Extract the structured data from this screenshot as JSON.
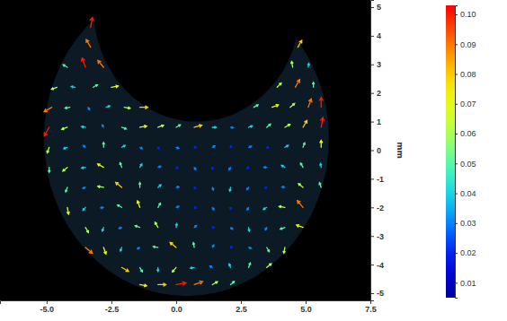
{
  "chart_data": {
    "type": "quiver",
    "y_label": "mm",
    "xlim": [
      -6.8,
      7.5
    ],
    "xticks": [
      {
        "value": -5,
        "label": "-5.0"
      },
      -2.5,
      {
        "value": 0,
        "label": "0.0"
      },
      2.5,
      {
        "value": 5,
        "label": "5.0"
      },
      7.5
    ],
    "ylim": [
      -5.25,
      5.25
    ],
    "yticks": [
      -5,
      -4,
      -3,
      -2,
      -1,
      0,
      1,
      2,
      3,
      4,
      5
    ],
    "x": [
      -3.3,
      -3.3,
      4.7,
      -4.2,
      -3.5,
      -2.8,
      4.5,
      5.1,
      -4.6,
      -3.9,
      -3.2,
      -2.5,
      3.9,
      4.6,
      5.3,
      -4.8,
      -4.1,
      -3.4,
      -2.7,
      -2.0,
      -1.4,
      3.0,
      3.7,
      4.4,
      5.1,
      5.6,
      -4.9,
      -4.2,
      -3.5,
      -2.8,
      -2.1,
      -1.4,
      -0.7,
      0,
      0.7,
      1.4,
      2.1,
      2.8,
      3.5,
      4.2,
      4.9,
      5.6,
      -4.9,
      -4.2,
      -3.5,
      -2.8,
      -2.1,
      -1.4,
      -0.7,
      0,
      0.7,
      1.4,
      2.1,
      2.8,
      3.5,
      4.2,
      4.9,
      5.6,
      -4.9,
      -4.2,
      -3.5,
      -2.8,
      -2.1,
      -1.4,
      -0.7,
      0,
      0.7,
      1.4,
      2.1,
      2.8,
      3.5,
      4.2,
      4.9,
      5.6,
      -4.2,
      -3.5,
      -2.8,
      -2.1,
      -1.4,
      -0.7,
      0,
      0.7,
      1.4,
      2.1,
      2.8,
      3.5,
      4.2,
      4.9,
      5.6,
      -4.2,
      -3.5,
      -2.8,
      -2.1,
      -1.4,
      -0.7,
      0,
      0.7,
      1.4,
      2.1,
      2.8,
      3.5,
      4.2,
      4.9,
      -3.5,
      -2.8,
      -2.1,
      -1.4,
      -0.7,
      0,
      0.7,
      1.4,
      2.1,
      2.8,
      3.5,
      4.2,
      4.9,
      -3.5,
      -2.8,
      -2.1,
      -1.4,
      -0.7,
      0,
      0.7,
      1.4,
      2.1,
      2.8,
      3.5,
      4.2,
      -2.1,
      -1.4,
      -0.7,
      0,
      0.7,
      1.4,
      2.1,
      2.8,
      3.5,
      -1.4,
      -0.7,
      0,
      0.7,
      1.4,
      2.1
    ],
    "y": [
      4.3,
      3.6,
      3.6,
      2.9,
      2.9,
      2.9,
      2.9,
      2.9,
      2.2,
      2.2,
      2.2,
      2.2,
      2.2,
      2.2,
      2.2,
      1.5,
      1.5,
      1.5,
      1.5,
      1.5,
      1.5,
      1.5,
      1.5,
      1.5,
      1.5,
      1.5,
      0.8,
      0.8,
      0.8,
      0.8,
      0.8,
      0.8,
      0.8,
      0.8,
      0.8,
      0.8,
      0.8,
      0.8,
      0.8,
      0.8,
      0.8,
      0.8,
      0.1,
      0.1,
      0.1,
      0.1,
      0.1,
      0.1,
      0.1,
      0.1,
      0.1,
      0.1,
      0.1,
      0.1,
      0.1,
      0.1,
      0.1,
      0.1,
      -0.6,
      -0.6,
      -0.6,
      -0.6,
      -0.6,
      -0.6,
      -0.6,
      -0.6,
      -0.6,
      -0.6,
      -0.6,
      -0.6,
      -0.6,
      -0.6,
      -0.6,
      -0.6,
      -1.3,
      -1.3,
      -1.3,
      -1.3,
      -1.3,
      -1.3,
      -1.3,
      -1.3,
      -1.3,
      -1.3,
      -1.3,
      -1.3,
      -1.3,
      -1.3,
      -1.3,
      -2.0,
      -2.0,
      -2.0,
      -2.0,
      -2.0,
      -2.0,
      -2.0,
      -2.0,
      -2.0,
      -2.0,
      -2.0,
      -2.0,
      -2.0,
      -2.0,
      -2.7,
      -2.7,
      -2.7,
      -2.7,
      -2.7,
      -2.7,
      -2.7,
      -2.7,
      -2.7,
      -2.7,
      -2.7,
      -2.7,
      -2.7,
      -3.4,
      -3.4,
      -3.4,
      -3.4,
      -3.4,
      -3.4,
      -3.4,
      -3.4,
      -3.4,
      -3.4,
      -3.4,
      -3.4,
      -4.1,
      -4.1,
      -4.1,
      -4.1,
      -4.1,
      -4.1,
      -4.1,
      -4.1,
      -4.1,
      -4.7,
      -4.7,
      -4.7,
      -4.7,
      -4.7,
      -4.7
    ],
    "speed": [
      0.1,
      0.09,
      0.08,
      0.05,
      0.1,
      0.09,
      0.06,
      0.04,
      0.06,
      0.04,
      0.05,
      0.07,
      0.06,
      0.09,
      0.05,
      0.09,
      0.05,
      0.03,
      0.04,
      0.06,
      0.08,
      0.05,
      0.07,
      0.06,
      0.09,
      0.1,
      0.1,
      0.06,
      0.04,
      0.03,
      0.05,
      0.07,
      0.06,
      0.05,
      0.08,
      0.04,
      0.03,
      0.04,
      0.05,
      0.06,
      0.08,
      0.1,
      0.06,
      0.04,
      0.03,
      0.05,
      0.04,
      0.03,
      0.02,
      0.03,
      0.02,
      0.03,
      0.02,
      0.03,
      0.02,
      0.04,
      0.05,
      0.07,
      0.05,
      0.06,
      0.04,
      0.07,
      0.05,
      0.04,
      0.03,
      0.02,
      0.03,
      0.02,
      0.03,
      0.02,
      0.03,
      0.04,
      0.05,
      0.04,
      0.05,
      0.03,
      0.06,
      0.08,
      0.05,
      0.04,
      0.03,
      0.02,
      0.03,
      0.04,
      0.03,
      0.02,
      0.03,
      0.06,
      0.05,
      0.07,
      0.04,
      0.03,
      0.05,
      0.07,
      0.05,
      0.03,
      0.02,
      0.03,
      0.02,
      0.03,
      0.04,
      0.06,
      0.09,
      0.06,
      0.04,
      0.03,
      0.05,
      0.06,
      0.04,
      0.03,
      0.02,
      0.03,
      0.04,
      0.03,
      0.05,
      0.07,
      0.09,
      0.07,
      0.04,
      0.03,
      0.05,
      0.08,
      0.05,
      0.03,
      0.02,
      0.03,
      0.05,
      0.06,
      0.08,
      0.05,
      0.04,
      0.06,
      0.04,
      0.03,
      0.04,
      0.05,
      0.06,
      0.07,
      0.08,
      0.1,
      0.09,
      0.06,
      0.05
    ],
    "angle": [
      80,
      120,
      60,
      150,
      110,
      130,
      100,
      80,
      200,
      170,
      30,
      10,
      45,
      60,
      90,
      210,
      190,
      300,
      20,
      350,
      0,
      30,
      20,
      40,
      70,
      90,
      240,
      200,
      170,
      120,
      340,
      10,
      20,
      30,
      15,
      0,
      350,
      20,
      40,
      30,
      60,
      80,
      250,
      200,
      140,
      90,
      30,
      330,
      300,
      340,
      10,
      30,
      60,
      20,
      350,
      30,
      70,
      90,
      270,
      220,
      190,
      150,
      110,
      60,
      20,
      330,
      300,
      270,
      240,
      210,
      180,
      150,
      120,
      100,
      250,
      200,
      170,
      140,
      90,
      40,
      10,
      320,
      290,
      260,
      230,
      200,
      170,
      140,
      110,
      280,
      230,
      190,
      150,
      110,
      60,
      20,
      340,
      300,
      270,
      240,
      210,
      170,
      130,
      300,
      250,
      200,
      160,
      120,
      80,
      40,
      0,
      320,
      280,
      240,
      200,
      160,
      320,
      290,
      250,
      210,
      170,
      140,
      100,
      60,
      20,
      340,
      300,
      260,
      330,
      300,
      270,
      230,
      190,
      150,
      110,
      70,
      40,
      350,
      0,
      10,
      20,
      30,
      40
    ],
    "colorbar": {
      "range": [
        0.005,
        0.103
      ],
      "ticks": [
        0.01,
        0.02,
        0.03,
        0.04,
        0.05,
        0.06,
        0.07,
        0.08,
        0.09,
        {
          "value": 0.1,
          "label": "0.10"
        }
      ]
    }
  }
}
